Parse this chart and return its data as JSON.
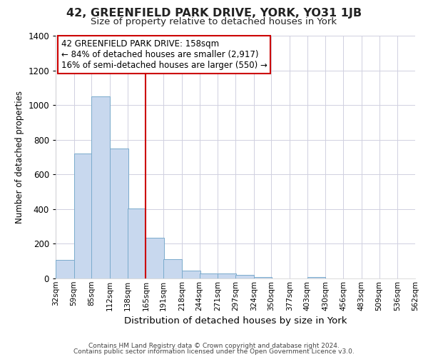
{
  "title1": "42, GREENFIELD PARK DRIVE, YORK, YO31 1JB",
  "title2": "Size of property relative to detached houses in York",
  "xlabel": "Distribution of detached houses by size in York",
  "ylabel": "Number of detached properties",
  "footnote1": "Contains HM Land Registry data © Crown copyright and database right 2024.",
  "footnote2": "Contains public sector information licensed under the Open Government Licence v3.0.",
  "annotation_line1": "42 GREENFIELD PARK DRIVE: 158sqm",
  "annotation_line2": "← 84% of detached houses are smaller (2,917)",
  "annotation_line3": "16% of semi-detached houses are larger (550) →",
  "bar_color": "#c8d8ee",
  "bar_edge_color": "#7aabcc",
  "vline_color": "#cc0000",
  "bins": [
    32,
    59,
    85,
    112,
    138,
    165,
    191,
    218,
    244,
    271,
    297,
    324,
    350,
    377,
    403,
    430,
    456,
    483,
    509,
    536,
    562
  ],
  "counts": [
    107,
    722,
    1052,
    748,
    403,
    236,
    111,
    47,
    29,
    30,
    20,
    10,
    0,
    0,
    10,
    0,
    0,
    0,
    0,
    0
  ],
  "ylim": [
    0,
    1400
  ],
  "yticks": [
    0,
    200,
    400,
    600,
    800,
    1000,
    1200,
    1400
  ],
  "grid_color": "#d0d0e0",
  "bg_color": "#ffffff",
  "title1_fontsize": 11.5,
  "title2_fontsize": 9.5,
  "xlabel_fontsize": 9.5,
  "ylabel_fontsize": 8.5,
  "annotation_fontsize": 8.5,
  "annotation_box_color": "#ffffff",
  "annotation_box_edge": "#cc0000",
  "footnote_fontsize": 6.5
}
